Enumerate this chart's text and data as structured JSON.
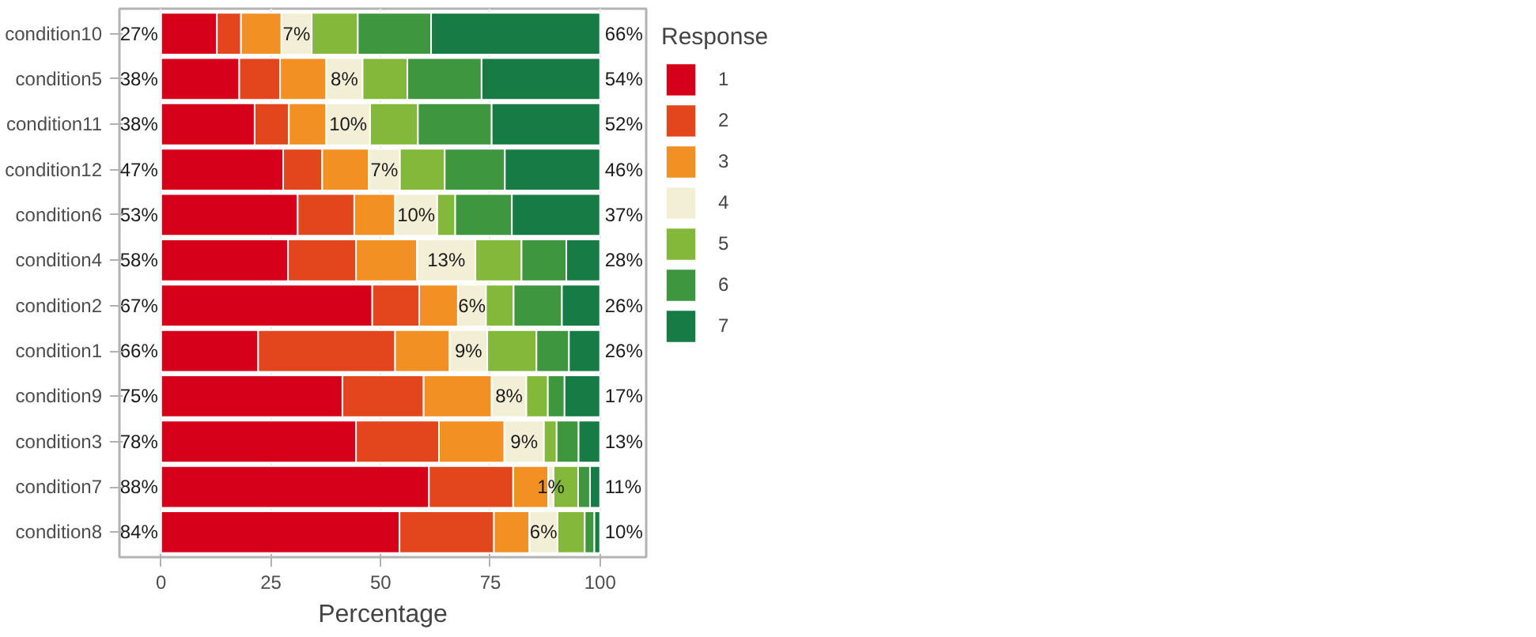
{
  "chart_data": {
    "type": "bar",
    "orientation": "horizontal",
    "stacked": true,
    "xlabel": "Percentage",
    "legend_title": "Response",
    "legend": "right",
    "grid": "x",
    "categories": [
      "condition10",
      "condition5",
      "condition11",
      "condition12",
      "condition6",
      "condition4",
      "condition2",
      "condition1",
      "condition9",
      "condition3",
      "condition7",
      "condition8"
    ],
    "xlim": [
      -9.5,
      110.5
    ],
    "xticks": [
      0,
      25,
      50,
      75,
      100
    ],
    "series": [
      {
        "name": "1",
        "color": "#d7001a",
        "values": [
          12.7,
          17.8,
          21.3,
          27.8,
          31.1,
          28.9,
          48.1,
          22.1,
          41.3,
          44.4,
          61.0,
          54.3
        ]
      },
      {
        "name": "2",
        "color": "#e3461c",
        "values": [
          5.5,
          9.3,
          7.8,
          8.9,
          12.9,
          15.5,
          10.7,
          31.2,
          18.5,
          18.9,
          19.2,
          21.5
        ]
      },
      {
        "name": "3",
        "color": "#f39023",
        "values": [
          9.2,
          10.5,
          8.5,
          10.6,
          9.3,
          13.9,
          8.8,
          12.4,
          15.5,
          14.9,
          8.0,
          8.1
        ]
      },
      {
        "name": "4",
        "color": "#f3efd6",
        "values": [
          6.9,
          8.3,
          10.0,
          7.1,
          9.6,
          13.3,
          6.4,
          8.6,
          7.9,
          9.0,
          1.2,
          6.4
        ],
        "value_labels": [
          "7%",
          "8%",
          "10%",
          "7%",
          "10%",
          "13%",
          "6%",
          "9%",
          "8%",
          "9%",
          "1%",
          "6%"
        ]
      },
      {
        "name": "5",
        "color": "#83b83b",
        "values": [
          10.5,
          10.2,
          10.9,
          10.2,
          4.1,
          10.5,
          6.3,
          11.2,
          4.9,
          2.9,
          5.6,
          6.2
        ]
      },
      {
        "name": "6",
        "color": "#3e963f",
        "values": [
          16.7,
          16.9,
          16.8,
          13.7,
          12.9,
          10.2,
          11.0,
          7.4,
          3.8,
          5.0,
          2.7,
          2.2
        ]
      },
      {
        "name": "7",
        "color": "#167b45",
        "values": [
          38.5,
          27.0,
          24.7,
          21.7,
          20.1,
          7.7,
          8.7,
          7.1,
          8.1,
          4.9,
          2.3,
          1.3
        ]
      }
    ],
    "annotations": [
      "27%",
      "38%",
      "38%",
      "47%",
      "53%",
      "58%",
      "67%",
      "66%",
      "75%",
      "78%",
      "88%",
      "84%",
      "66%",
      "54%",
      "52%",
      "46%",
      "37%",
      "28%",
      "26%",
      "26%",
      "17%",
      "13%",
      "11%",
      "10%"
    ]
  }
}
